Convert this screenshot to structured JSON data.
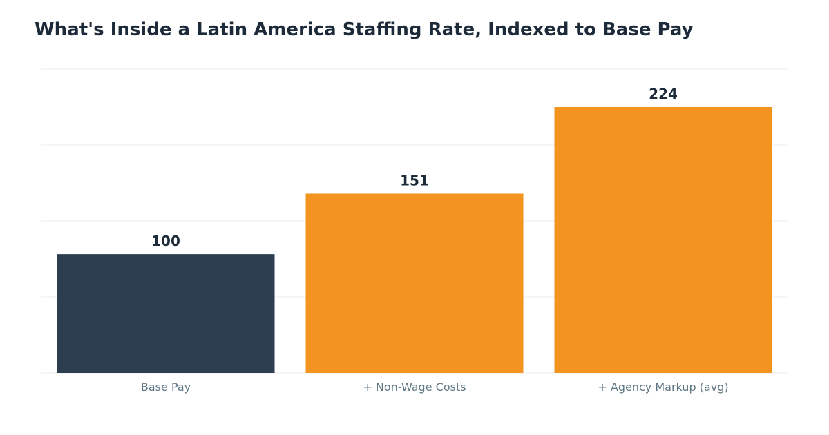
{
  "chart_data": {
    "type": "bar",
    "title": "What's Inside a Latin America Staffing Rate, Indexed to Base Pay",
    "categories": [
      "Base Pay",
      "+ Non-Wage Costs",
      "+ Agency Markup (avg)"
    ],
    "values": [
      100,
      151,
      224
    ],
    "ylim": [
      0,
      256
    ],
    "grid": true,
    "legend": "none",
    "colors": [
      "#2c3e50",
      "#f39421",
      "#f39421"
    ],
    "xlabel": "",
    "ylabel": ""
  }
}
